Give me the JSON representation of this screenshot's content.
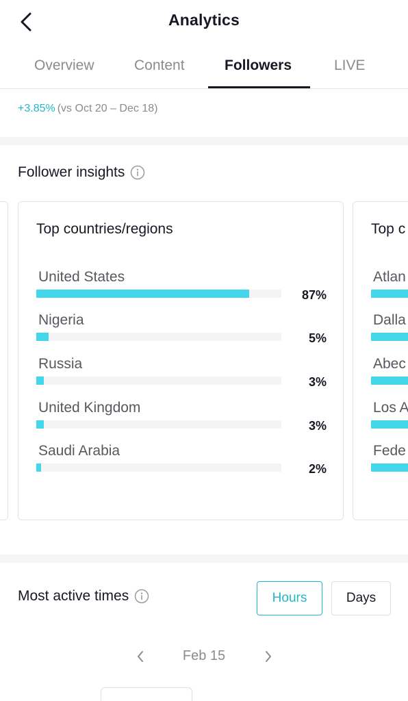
{
  "header": {
    "title": "Analytics"
  },
  "tabs": [
    {
      "label": "Overview",
      "active": false
    },
    {
      "label": "Content",
      "active": false
    },
    {
      "label": "Followers",
      "active": true
    },
    {
      "label": "LIVE",
      "active": false
    }
  ],
  "follower_change": {
    "delta": "+3.85%",
    "comparison": "(vs Oct 20 – Dec 18)"
  },
  "follower_insights": {
    "title": "Follower insights",
    "top_countries": {
      "title": "Top countries/regions",
      "items": [
        {
          "label": "United States",
          "pct": "87%",
          "value": 0.87
        },
        {
          "label": "Nigeria",
          "pct": "5%",
          "value": 0.05
        },
        {
          "label": "Russia",
          "pct": "3%",
          "value": 0.03
        },
        {
          "label": "United Kingdom",
          "pct": "3%",
          "value": 0.03
        },
        {
          "label": "Saudi Arabia",
          "pct": "2%",
          "value": 0.02
        }
      ]
    },
    "top_cities_partial": {
      "title": "Top c",
      "items": [
        {
          "label": "Atlan",
          "value": 0.6
        },
        {
          "label": "Dalla",
          "value": 0.6
        },
        {
          "label": "Abec",
          "value": 0.6
        },
        {
          "label": "Los A",
          "value": 0.6
        },
        {
          "label": "Fede",
          "value": 0.43
        }
      ]
    }
  },
  "most_active_times": {
    "title": "Most active times",
    "toggle": {
      "hours": "Hours",
      "days": "Days",
      "selected": "hours"
    },
    "date": "Feb 15"
  },
  "colors": {
    "accent": "#20b8c8",
    "bar": "#44d7ec",
    "text": "#161823",
    "muted": "#8a8b91"
  },
  "icons": {
    "back": "chevron-left-icon",
    "info": "info-icon",
    "prev": "chevron-left-icon",
    "next": "chevron-right-icon"
  }
}
